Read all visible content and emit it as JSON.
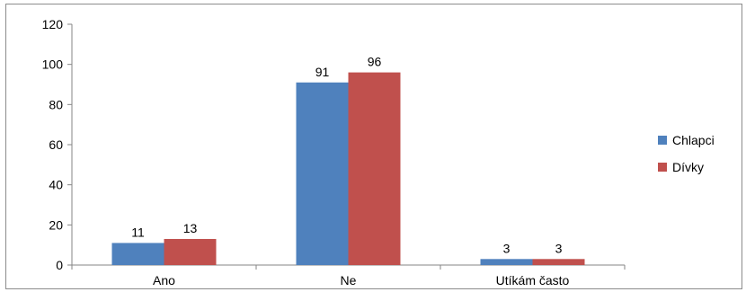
{
  "chart_data": {
    "type": "bar",
    "categories": [
      "Ano",
      "Ne",
      "Utíkám často"
    ],
    "series": [
      {
        "name": "Chlapci",
        "values": [
          11,
          91,
          3
        ],
        "color": "#4F81BD"
      },
      {
        "name": "Dívky",
        "values": [
          13,
          96,
          3
        ],
        "color": "#C0504D"
      }
    ],
    "ylim": [
      0,
      120
    ],
    "yticks": [
      "0",
      "20",
      "40",
      "60",
      "80",
      "100",
      "120"
    ],
    "data_labels": true,
    "grid": false,
    "legend_position": "right",
    "title": "",
    "xlabel": "",
    "ylabel": ""
  }
}
